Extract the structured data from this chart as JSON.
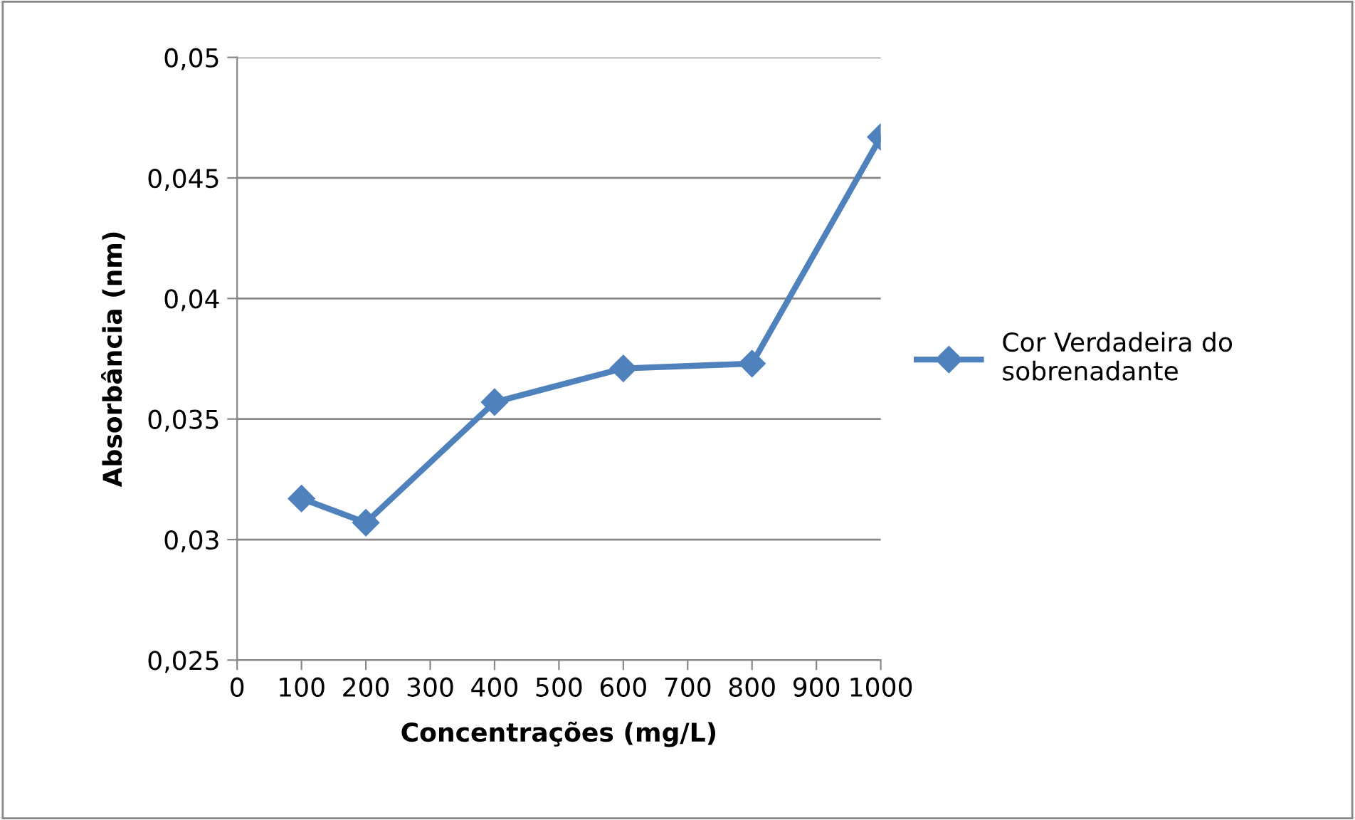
{
  "chart_data": {
    "type": "line",
    "xlabel": "Concentrações (mg/L)",
    "ylabel": "Absorbância (nm)",
    "x": [
      100,
      200,
      400,
      600,
      800,
      1000
    ],
    "series": [
      {
        "name": "Cor Verdadeira do\nsobrenadante",
        "color": "#4f81bd",
        "values": [
          0.0317,
          0.0307,
          0.0357,
          0.0371,
          0.0373,
          0.0467
        ]
      }
    ],
    "xlim": [
      0,
      1000
    ],
    "xticks": [
      0,
      100,
      200,
      300,
      400,
      500,
      600,
      700,
      800,
      900,
      1000
    ],
    "ylim": [
      0.025,
      0.05
    ],
    "yticks": [
      {
        "value": 0.025,
        "label": "0,025"
      },
      {
        "value": 0.03,
        "label": "0,03"
      },
      {
        "value": 0.035,
        "label": "0,035"
      },
      {
        "value": 0.04,
        "label": "0,04"
      },
      {
        "value": 0.045,
        "label": "0,045"
      },
      {
        "value": 0.05,
        "label": "0,05"
      }
    ],
    "grid": "y",
    "legend": "right",
    "marker": "diamond",
    "line_style": "solid"
  }
}
